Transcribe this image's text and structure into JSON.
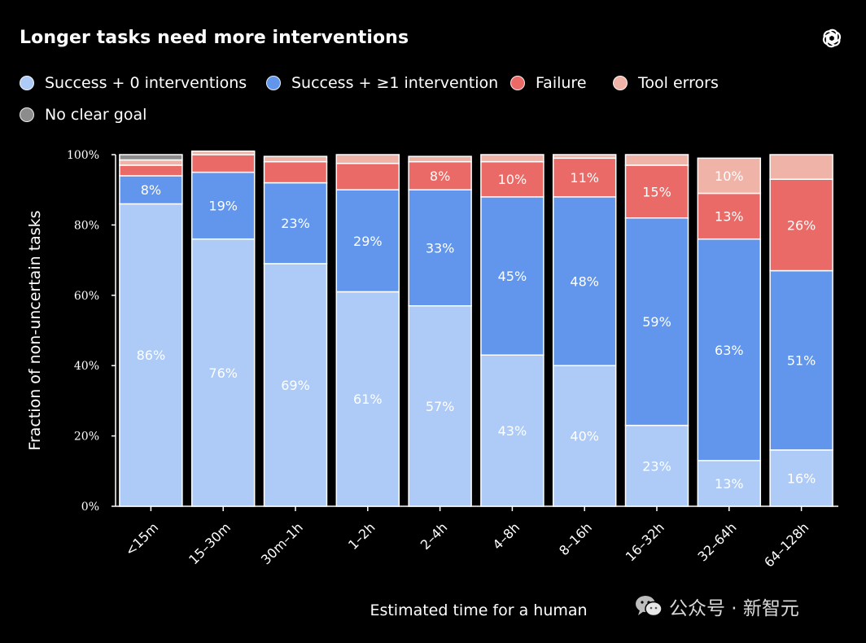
{
  "header": {
    "title": "Longer tasks need more interventions",
    "logo_icon": "openai-logo-icon"
  },
  "watermark": {
    "text": "公众号 · 新智元",
    "icon": "wechat-icon"
  },
  "colors": {
    "background": "#000000",
    "success_0": "#adcbf6",
    "success_1": "#6196ec",
    "failure": "#e96a66",
    "tool_errors": "#f0b3a8",
    "no_clear_goal": "#8c8c8c"
  },
  "chart_data": {
    "type": "bar",
    "stacked": true,
    "xlabel": "Estimated time for a human",
    "ylabel": "Fraction of non-uncertain tasks",
    "ylim": [
      0,
      100
    ],
    "yticks": [
      "0%",
      "20%",
      "40%",
      "60%",
      "80%",
      "100%"
    ],
    "categories": [
      "<15m",
      "15–30m",
      "30m–1h",
      "1–2h",
      "2–4h",
      "4–8h",
      "8–16h",
      "16–32h",
      "32–64h",
      "64–128h"
    ],
    "legend_position": "top",
    "series": [
      {
        "name": "Success + 0 interventions",
        "color": "#adcbf6",
        "values": [
          86,
          76,
          69,
          61,
          57,
          43,
          40,
          23,
          13,
          16
        ],
        "labels": [
          "86%",
          "76%",
          "69%",
          "61%",
          "57%",
          "43%",
          "40%",
          "23%",
          "13%",
          "16%"
        ]
      },
      {
        "name": "Success + ≥1 intervention",
        "color": "#6196ec",
        "values": [
          8,
          19,
          23,
          29,
          33,
          45,
          48,
          59,
          63,
          51
        ],
        "labels": [
          "8%",
          "19%",
          "23%",
          "29%",
          "33%",
          "45%",
          "48%",
          "59%",
          "63%",
          "51%"
        ]
      },
      {
        "name": "Failure",
        "color": "#e96a66",
        "values": [
          3,
          5,
          6,
          7.5,
          8,
          10,
          11,
          15,
          13,
          26
        ],
        "labels": [
          "",
          "",
          "",
          "",
          "8%",
          "10%",
          "11%",
          "15%",
          "13%",
          "26%"
        ]
      },
      {
        "name": "Tool errors",
        "color": "#f0b3a8",
        "values": [
          1.5,
          1,
          1.5,
          2.5,
          1.5,
          2,
          1,
          3,
          10,
          7
        ],
        "labels": [
          "",
          "",
          "",
          "",
          "",
          "",
          "",
          "",
          "10%",
          ""
        ]
      },
      {
        "name": "No clear goal",
        "color": "#8c8c8c",
        "values": [
          1.5,
          0,
          0,
          0,
          0,
          0,
          0,
          0,
          0,
          0
        ],
        "labels": [
          "",
          "",
          "",
          "",
          "",
          "",
          "",
          "",
          "",
          ""
        ]
      }
    ]
  }
}
